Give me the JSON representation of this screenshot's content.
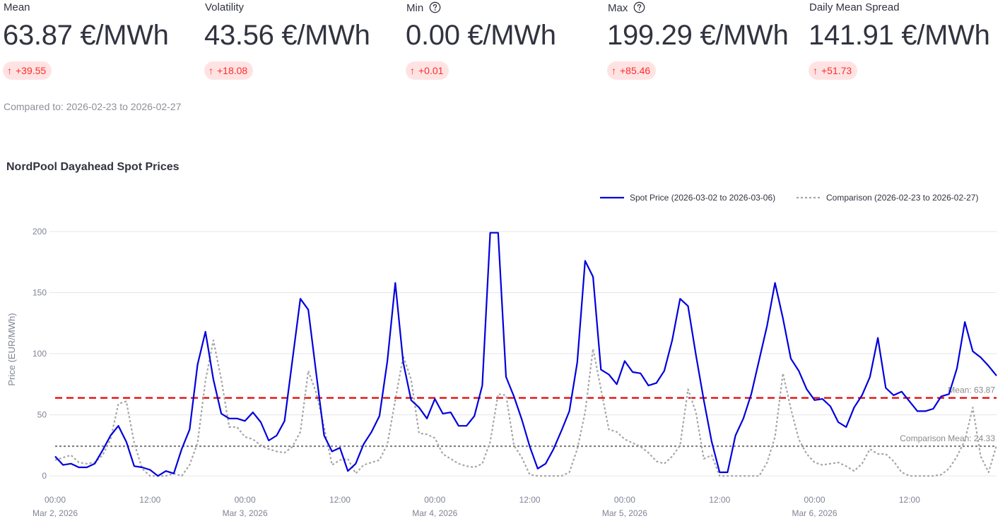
{
  "metrics": [
    {
      "label": "Mean",
      "value": "63.87 €/MWh",
      "delta": "+39.55",
      "help": false
    },
    {
      "label": "Volatility",
      "value": "43.56 €/MWh",
      "delta": "+18.08",
      "help": false
    },
    {
      "label": "Min",
      "value": "0.00 €/MWh",
      "delta": "+0.01",
      "help": true
    },
    {
      "label": "Max",
      "value": "199.29 €/MWh",
      "delta": "+85.46",
      "help": true
    },
    {
      "label": "Daily Mean Spread",
      "value": "141.91 €/MWh",
      "delta": "+51.73",
      "help": false
    }
  ],
  "compared_text": "Compared to: 2026-02-23 to 2026-02-27",
  "colors": {
    "delta_up_text": "#ff2b2b",
    "delta_up_bg": "#ffe3e3",
    "spot": "#0000dd",
    "comparison": "#a6a6a6",
    "mean_line": "#e50000",
    "comparison_mean_line": "#808080"
  },
  "icons": {
    "delta": "arrow-up-icon",
    "help": "question-circle-icon"
  },
  "chart_data": {
    "type": "line",
    "title": "NordPool Dayahead Spot Prices",
    "xlabel": "",
    "ylabel": "Price (EUR/MWh)",
    "ylim": [
      -8,
      215
    ],
    "xlim": [
      0,
      119
    ],
    "yticks": [
      0,
      50,
      100,
      150,
      200
    ],
    "xticks": [
      {
        "x": 0,
        "label": "00:00",
        "sublabel": "Mar 2, 2026"
      },
      {
        "x": 12,
        "label": "12:00",
        "sublabel": ""
      },
      {
        "x": 24,
        "label": "00:00",
        "sublabel": "Mar 3, 2026"
      },
      {
        "x": 36,
        "label": "12:00",
        "sublabel": ""
      },
      {
        "x": 48,
        "label": "00:00",
        "sublabel": "Mar 4, 2026"
      },
      {
        "x": 60,
        "label": "12:00",
        "sublabel": ""
      },
      {
        "x": 72,
        "label": "00:00",
        "sublabel": "Mar 5, 2026"
      },
      {
        "x": 84,
        "label": "12:00",
        "sublabel": ""
      },
      {
        "x": 96,
        "label": "00:00",
        "sublabel": "Mar 6, 2026"
      },
      {
        "x": 108,
        "label": "12:00",
        "sublabel": ""
      }
    ],
    "grid": "horizontal",
    "legend_position": "top-right",
    "series": [
      {
        "name": "Spot Price (2026-03-02 to 2026-03-06)",
        "style": "solid",
        "color": "#0000dd",
        "values": [
          16,
          9,
          10,
          7,
          7,
          10,
          21,
          33,
          41,
          28,
          8,
          7,
          5,
          0,
          4,
          2,
          22,
          38,
          91,
          118,
          79,
          51,
          47,
          47,
          45,
          52,
          44,
          29,
          33,
          45,
          95,
          145,
          136,
          84,
          33,
          20,
          23,
          4,
          10,
          26,
          36,
          49,
          94,
          158,
          93,
          62,
          56,
          47,
          63,
          51,
          52,
          41,
          41,
          49,
          74,
          199,
          199,
          81,
          65,
          46,
          24,
          6,
          10,
          22,
          37,
          53,
          93,
          176,
          163,
          87,
          83,
          75,
          94,
          85,
          84,
          74,
          76,
          86,
          111,
          145,
          139,
          99,
          62,
          28,
          3,
          3,
          33,
          47,
          67,
          95,
          123,
          158,
          129,
          96,
          86,
          71,
          62,
          63,
          57,
          44,
          40,
          56,
          66,
          81,
          113,
          72,
          66,
          69,
          61,
          53,
          53,
          55,
          65,
          67,
          88,
          126,
          102,
          97,
          90,
          82
        ]
      },
      {
        "name": "Comparison (2026-02-23 to 2026-02-27)",
        "style": "dashed",
        "color": "#a6a6a6",
        "values": [
          13,
          15,
          17,
          11,
          10,
          11,
          17,
          30,
          59,
          61,
          27,
          6,
          0,
          0,
          0,
          2,
          0,
          9,
          27,
          78,
          111,
          79,
          40,
          40,
          32,
          30,
          25,
          22,
          20,
          19,
          24,
          36,
          86,
          68,
          40,
          9,
          13,
          14,
          2,
          9,
          11,
          13,
          26,
          62,
          98,
          79,
          35,
          34,
          31,
          18,
          14,
          10,
          8,
          7,
          10,
          28,
          67,
          66,
          25,
          15,
          1,
          0,
          0,
          0,
          0,
          3,
          22,
          52,
          104,
          71,
          38,
          36,
          30,
          27,
          24,
          19,
          12,
          10,
          16,
          25,
          71,
          52,
          14,
          17,
          0,
          0,
          0,
          0,
          0,
          0,
          11,
          32,
          84,
          55,
          30,
          18,
          11,
          9,
          10,
          11,
          8,
          4,
          10,
          22,
          18,
          18,
          12,
          3,
          0,
          0,
          0,
          0,
          1,
          6,
          16,
          29,
          56,
          16,
          3,
          25
        ]
      }
    ],
    "mean_lines": [
      {
        "label": "Mean: 63.87",
        "value": 63.87,
        "color": "#e50000",
        "style": "dashed"
      },
      {
        "label": "Comparison Mean: 24.33",
        "value": 24.33,
        "color": "#808080",
        "style": "dotted"
      }
    ]
  }
}
